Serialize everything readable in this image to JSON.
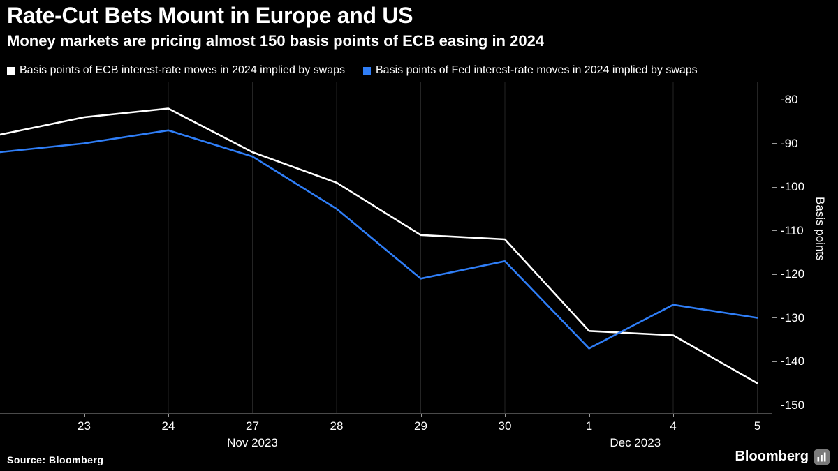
{
  "header": {
    "title": "Rate-Cut Bets Mount in Europe and US",
    "subtitle": "Money markets are pricing almost 150 basis points of ECB easing in 2024"
  },
  "legend": {
    "items": [
      {
        "label": "Basis points of ECB interest-rate moves in 2024 implied by swaps",
        "color": "#ffffff"
      },
      {
        "label": "Basis points of Fed interest-rate moves in 2024 implied by swaps",
        "color": "#2f7ef7"
      }
    ]
  },
  "chart_data": {
    "type": "line",
    "x_labels": [
      "",
      "23",
      "24",
      "27",
      "28",
      "29",
      "30",
      "1",
      "4",
      "5"
    ],
    "month_labels": [
      {
        "label": "Nov 2023",
        "center_index": 3
      },
      {
        "label": "Dec 2023",
        "center_index": 7.55
      }
    ],
    "month_divider_after_index": 6,
    "series": [
      {
        "name": "Basis points of ECB interest-rate moves in 2024 implied by swaps",
        "color": "#ffffff",
        "values": [
          -88,
          -84,
          -82,
          -92,
          -99,
          -111,
          -112,
          -133,
          -134,
          -145
        ]
      },
      {
        "name": "Basis points of Fed interest-rate moves in 2024 implied by swaps",
        "color": "#2f7ef7",
        "values": [
          -92,
          -90,
          -87,
          -93,
          -105,
          -121,
          -117,
          -137,
          -127,
          -130
        ]
      }
    ],
    "ylabel": "Basis points",
    "y_ticks": [
      -80,
      -90,
      -100,
      -110,
      -120,
      -130,
      -140,
      -150
    ],
    "ylim": [
      -152,
      -76
    ],
    "grid": "vertical",
    "legend_position": "top",
    "y_axis_side": "right"
  },
  "footer": {
    "source": "Source: Bloomberg",
    "brand": "Bloomberg"
  }
}
